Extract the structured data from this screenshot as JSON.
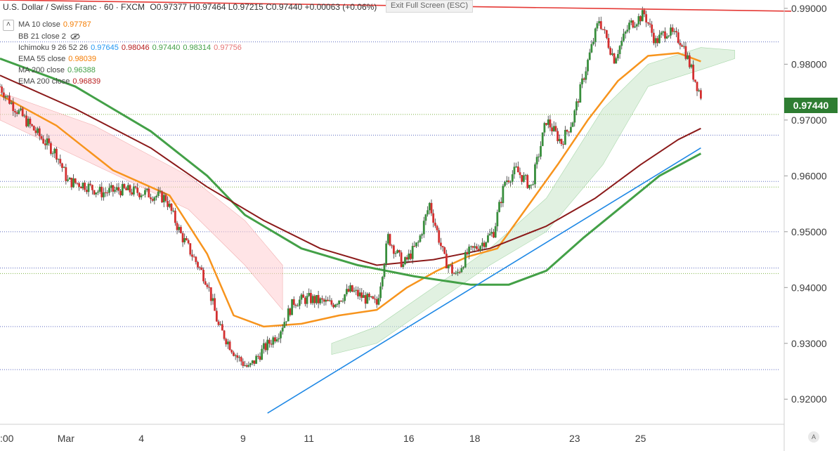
{
  "header": {
    "symbol_title": "U.S. Dollar / Swiss Franc · 60 · FXCM",
    "ohlc": "O0.97377 H0.97464 L0.97215 C0.97440 +0.00063 (+0.06%)"
  },
  "exit_fullscreen_label": "Exit Full Screen (ESC)",
  "current_price_label": "0.97440",
  "auto_button_label": "A",
  "collapse_icon": "chevron-up-icon",
  "legend": [
    {
      "label": "MA 10 close",
      "values": [
        "0.97787"
      ],
      "colors": [
        "#f57c00"
      ]
    },
    {
      "label": "BB 21 close 2",
      "values": [],
      "colors": []
    },
    {
      "label": "Ichimoku 9 26 52 26",
      "values": [
        "0.97645",
        "0.98046",
        "0.97440",
        "0.98314",
        "0.97756"
      ],
      "colors": [
        "#2196f3",
        "#b71c1c",
        "#43a047",
        "#43a047",
        "#e57373"
      ]
    },
    {
      "label": "EMA 55 close",
      "values": [
        "0.98039"
      ],
      "colors": [
        "#f57c00"
      ]
    },
    {
      "label": "MA 200 close",
      "values": [
        "0.96388"
      ],
      "colors": [
        "#43a047"
      ]
    },
    {
      "label": "EMA 200 close",
      "values": [
        "0.96839"
      ],
      "colors": [
        "#b71c1c"
      ]
    }
  ],
  "colors": {
    "up_candle": "#388e3c",
    "down_candle": "#d32f2f",
    "ema55": "#f7941d",
    "ma200": "#43a047",
    "ema200": "#8b1a1a",
    "trendline_red": "#e53935",
    "trendline_blue": "#1e88e5",
    "cloud_bull": "#c8e6c9",
    "cloud_bear": "#ffcdd2",
    "price_badge": "#2e7d32"
  },
  "chart_data": {
    "type": "line",
    "title": "U.S. Dollar / Swiss Franc · 60 · FXCM",
    "x_tick_labels": [
      ":00",
      "Mar",
      "4",
      "9",
      "11",
      "16",
      "18",
      "23",
      "25"
    ],
    "y_tick_labels": [
      "0.92000",
      "0.93000",
      "0.94000",
      "0.95000",
      "0.96000",
      "0.97000",
      "0.98000",
      "0.99000"
    ],
    "ylim": [
      0.9155,
      0.9915
    ],
    "grid": false,
    "series": [
      {
        "name": "price",
        "points": [
          [
            0,
            0.976
          ],
          [
            3,
            0.973
          ],
          [
            8,
            0.969
          ],
          [
            12,
            0.966
          ],
          [
            15,
            0.964
          ],
          [
            18,
            0.959
          ],
          [
            22,
            0.9585
          ],
          [
            27,
            0.957
          ],
          [
            32,
            0.9575
          ],
          [
            38,
            0.957
          ],
          [
            44,
            0.956
          ],
          [
            48,
            0.9495
          ],
          [
            55,
            0.941
          ],
          [
            58,
            0.933
          ],
          [
            63,
            0.9275
          ],
          [
            66,
            0.9255
          ],
          [
            70,
            0.929
          ],
          [
            74,
            0.932
          ],
          [
            78,
            0.9375
          ],
          [
            82,
            0.938
          ],
          [
            88,
            0.937
          ],
          [
            93,
            0.9395
          ],
          [
            97,
            0.938
          ],
          [
            100,
            0.937
          ],
          [
            103,
            0.949
          ],
          [
            107,
            0.944
          ],
          [
            111,
            0.948
          ],
          [
            114,
            0.955
          ],
          [
            118,
            0.945
          ],
          [
            121,
            0.942
          ],
          [
            124,
            0.946
          ],
          [
            128,
            0.948
          ],
          [
            131,
            0.95
          ],
          [
            134,
            0.959
          ],
          [
            137,
            0.961
          ],
          [
            141,
            0.958
          ],
          [
            145,
            0.97
          ],
          [
            149,
            0.966
          ],
          [
            152,
            0.97
          ],
          [
            155,
            0.978
          ],
          [
            159,
            0.988
          ],
          [
            163,
            0.981
          ],
          [
            167,
            0.987
          ],
          [
            171,
            0.989
          ],
          [
            174,
            0.984
          ],
          [
            177,
            0.986
          ],
          [
            181,
            0.984
          ],
          [
            184,
            0.978
          ],
          [
            186,
            0.9744
          ]
        ]
      },
      {
        "name": "EMA 55 close",
        "points": [
          [
            0,
            0.9745
          ],
          [
            15,
            0.969
          ],
          [
            30,
            0.961
          ],
          [
            45,
            0.9565
          ],
          [
            55,
            0.946
          ],
          [
            62,
            0.935
          ],
          [
            70,
            0.933
          ],
          [
            80,
            0.9335
          ],
          [
            90,
            0.935
          ],
          [
            100,
            0.936
          ],
          [
            108,
            0.94
          ],
          [
            116,
            0.943
          ],
          [
            124,
            0.9455
          ],
          [
            132,
            0.947
          ],
          [
            140,
            0.9545
          ],
          [
            148,
            0.962
          ],
          [
            156,
            0.97
          ],
          [
            164,
            0.977
          ],
          [
            172,
            0.9815
          ],
          [
            180,
            0.982
          ],
          [
            186,
            0.9805
          ]
        ]
      },
      {
        "name": "MA 200 close",
        "points": [
          [
            0,
            0.981
          ],
          [
            20,
            0.976
          ],
          [
            40,
            0.968
          ],
          [
            55,
            0.96
          ],
          [
            65,
            0.953
          ],
          [
            80,
            0.947
          ],
          [
            95,
            0.944
          ],
          [
            110,
            0.942
          ],
          [
            125,
            0.9405
          ],
          [
            135,
            0.9405
          ],
          [
            145,
            0.943
          ],
          [
            155,
            0.949
          ],
          [
            165,
            0.9545
          ],
          [
            175,
            0.96
          ],
          [
            186,
            0.964
          ]
        ]
      },
      {
        "name": "EMA 200 close",
        "points": [
          [
            0,
            0.978
          ],
          [
            20,
            0.972
          ],
          [
            40,
            0.965
          ],
          [
            55,
            0.958
          ],
          [
            70,
            0.952
          ],
          [
            85,
            0.947
          ],
          [
            100,
            0.944
          ],
          [
            115,
            0.945
          ],
          [
            130,
            0.947
          ],
          [
            145,
            0.951
          ],
          [
            158,
            0.956
          ],
          [
            170,
            0.962
          ],
          [
            180,
            0.9665
          ],
          [
            186,
            0.9685
          ]
        ]
      }
    ],
    "trendlines": [
      {
        "name": "resistance",
        "from": [
          0,
          0.9915
        ],
        "to": [
          210,
          0.9895
        ]
      },
      {
        "name": "support",
        "from": [
          71,
          0.9175
        ],
        "to": [
          186,
          0.965
        ]
      }
    ],
    "horizontal_levels": [
      0.984,
      0.971,
      0.9673,
      0.959,
      0.958,
      0.95,
      0.9435,
      0.9425,
      0.933,
      0.9253
    ],
    "cloud": [
      {
        "sentiment": "bear",
        "points": [
          [
            0,
            0.975,
            0.97
          ],
          [
            25,
            0.969,
            0.962
          ],
          [
            50,
            0.96,
            0.954
          ],
          [
            65,
            0.952,
            0.944
          ],
          [
            75,
            0.944,
            0.936
          ]
        ]
      },
      {
        "sentiment": "bull",
        "points": [
          [
            88,
            0.93,
            0.928
          ],
          [
            100,
            0.933,
            0.93
          ],
          [
            115,
            0.94,
            0.937
          ],
          [
            130,
            0.947,
            0.944
          ],
          [
            145,
            0.956,
            0.95
          ],
          [
            160,
            0.972,
            0.962
          ],
          [
            172,
            0.98,
            0.976
          ],
          [
            186,
            0.983,
            0.979
          ],
          [
            195,
            0.9825,
            0.981
          ]
        ]
      }
    ]
  }
}
